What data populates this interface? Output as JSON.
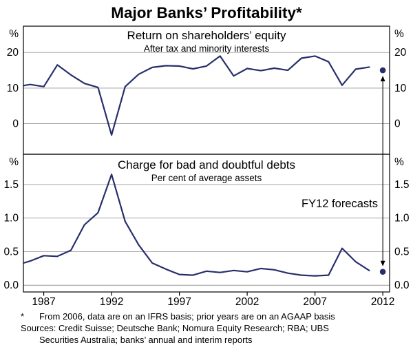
{
  "title": "Major Banks’ Profitability*",
  "chart_data": {
    "type": "line",
    "xlim": [
      1985.5,
      2012.5
    ],
    "xticks": [
      1987,
      1992,
      1997,
      2002,
      2007,
      2012
    ],
    "grid": true,
    "line_color": "#262f6b",
    "annotation": "FY12 forecasts",
    "panels": [
      {
        "title": "Return on shareholders’ equity",
        "subtitle": "After tax and minority interests",
        "unit": "%",
        "ylim": [
          -8.6,
          27.4
        ],
        "yticks": [
          0,
          10,
          20
        ],
        "ytick_labels": [
          "0",
          "10",
          "20"
        ],
        "series": {
          "name": "Return on shareholders’ equity (%)",
          "x": [
            1985.5,
            1986,
            1987,
            1988,
            1989,
            1990,
            1991,
            1992,
            1993,
            1994,
            1995,
            1996,
            1997,
            1998,
            1999,
            2000,
            2001,
            2002,
            2003,
            2004,
            2005,
            2006,
            2007,
            2008,
            2009,
            2010,
            2011
          ],
          "y": [
            10.7,
            11.0,
            10.4,
            16.5,
            13.7,
            11.3,
            10.2,
            -3.2,
            10.4,
            13.9,
            15.8,
            16.3,
            16.2,
            15.4,
            16.2,
            19.0,
            13.4,
            15.5,
            14.9,
            15.6,
            15.0,
            18.4,
            19.0,
            17.4,
            10.8,
            15.3,
            15.9
          ]
        },
        "forecast_point": {
          "x": 2012,
          "y": 15.0
        }
      },
      {
        "title": "Charge for bad and doubtful debts",
        "subtitle": "Per cent of average assets",
        "unit": "%",
        "ylim": [
          -0.1,
          1.95
        ],
        "yticks": [
          0,
          0.5,
          1.0,
          1.5
        ],
        "ytick_labels": [
          "0.0",
          "0.5",
          "1.0",
          "1.5"
        ],
        "series": {
          "name": "Charge for bad and doubtful debts (% of average assets)",
          "x": [
            1985.5,
            1986,
            1987,
            1988,
            1989,
            1990,
            1991,
            1992,
            1993,
            1994,
            1995,
            1996,
            1997,
            1998,
            1999,
            2000,
            2001,
            2002,
            2003,
            2004,
            2005,
            2006,
            2007,
            2008,
            2009,
            2010,
            2011
          ],
          "y": [
            0.33,
            0.36,
            0.44,
            0.43,
            0.52,
            0.9,
            1.08,
            1.65,
            0.95,
            0.6,
            0.33,
            0.24,
            0.16,
            0.15,
            0.21,
            0.19,
            0.22,
            0.2,
            0.25,
            0.23,
            0.18,
            0.15,
            0.14,
            0.15,
            0.55,
            0.35,
            0.22
          ]
        },
        "forecast_point": {
          "x": 2012,
          "y": 0.2
        }
      }
    ]
  },
  "footnote": {
    "symbol": "*",
    "text": "From 2006, data are on an IFRS basis; prior years are on an AGAAP basis"
  },
  "sources": "Sources: Credit Suisse; Deutsche Bank; Nomura Equity Research; RBA; UBS Securities Australia; banks’ annual and interim reports"
}
